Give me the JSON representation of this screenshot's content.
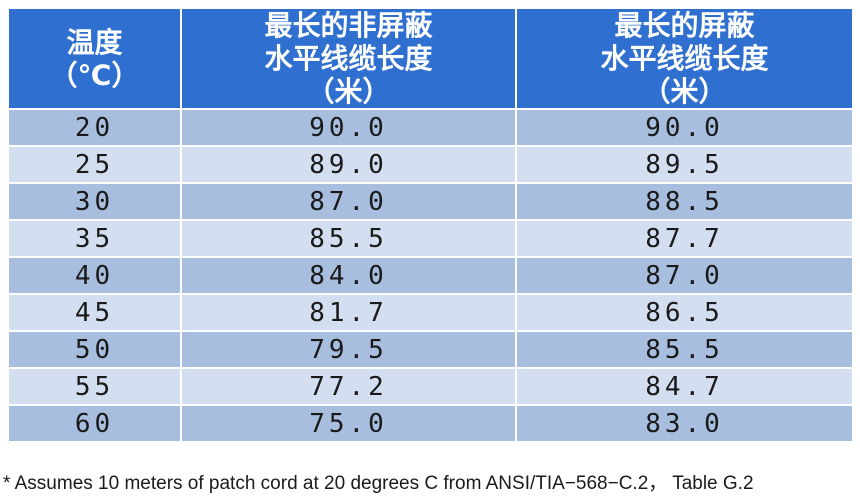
{
  "table": {
    "headers": [
      {
        "lines": [
          "温度",
          "（℃）"
        ]
      },
      {
        "lines": [
          "最长的非屏蔽",
          "水平线缆长度",
          "（米）"
        ]
      },
      {
        "lines": [
          "最长的屏蔽",
          "水平线缆长度",
          "（米）"
        ]
      }
    ],
    "rows": [
      [
        "20",
        "90.0",
        "90.0"
      ],
      [
        "25",
        "89.0",
        "89.5"
      ],
      [
        "30",
        "87.0",
        "88.5"
      ],
      [
        "35",
        "85.5",
        "87.7"
      ],
      [
        "40",
        "84.0",
        "87.0"
      ],
      [
        "45",
        "81.7",
        "86.5"
      ],
      [
        "50",
        "79.5",
        "85.5"
      ],
      [
        "55",
        "77.2",
        "84.7"
      ],
      [
        "60",
        "75.0",
        "83.0"
      ]
    ]
  },
  "footnote": "* Assumes 10 meters of patch cord at 20 degrees C from ANSI/TIA−568−C.2， Table G.2",
  "colors": {
    "header_bg": "#2f6fcf",
    "row_dark": "#a8bedf",
    "row_light": "#d3dff0"
  }
}
